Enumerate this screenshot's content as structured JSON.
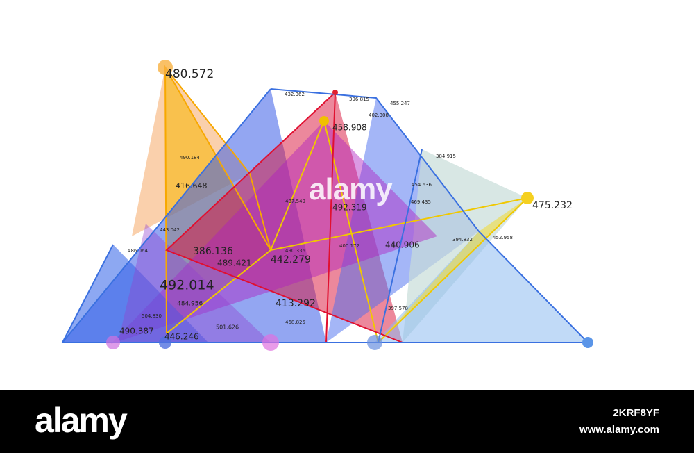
{
  "labels": [
    "480.572",
    "432.362",
    "396.815",
    "455.247",
    "402.308",
    "458.908",
    "384.915",
    "490.184",
    "416.648",
    "454.636",
    "437.549",
    "492.319",
    "469.435",
    "475.232",
    "443.042",
    "394.832",
    "452.958",
    "440.906",
    "486.064",
    "400.172",
    "386.136",
    "490.336",
    "489.421",
    "442.279",
    "492.014",
    "484.956",
    "413.292",
    "504.830",
    "397.578",
    "468.825",
    "501.626",
    "490.387",
    "446.246"
  ],
  "watermark": "alamy",
  "footer": {
    "logo": "alamy",
    "image_id": "2KRF8YF",
    "site": "www.alamy.com"
  }
}
